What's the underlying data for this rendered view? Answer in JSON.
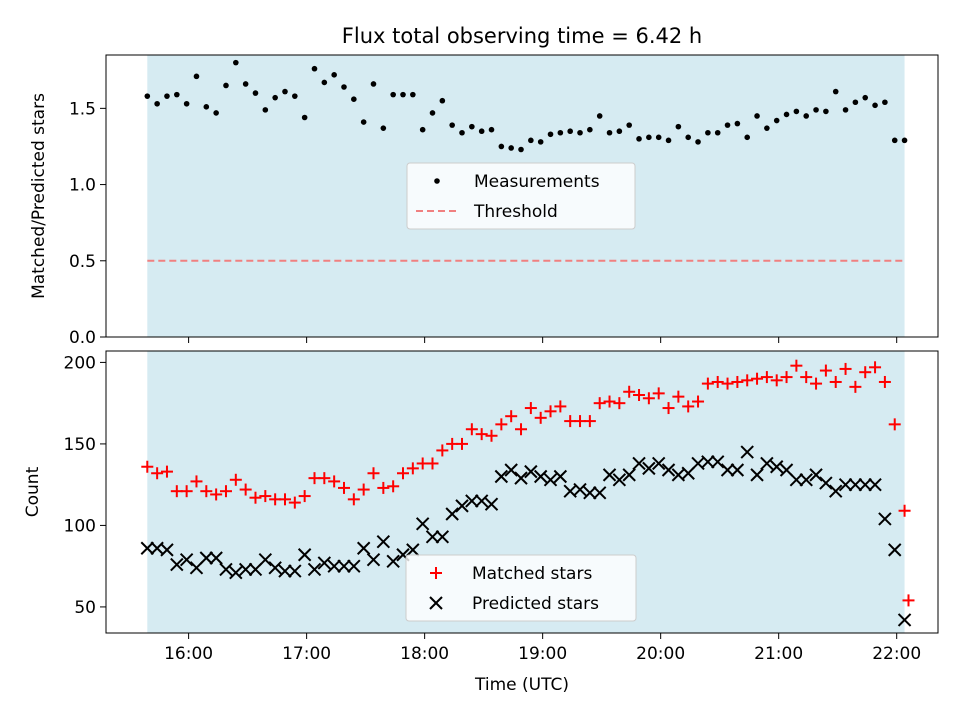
{
  "chart_data": [
    {
      "type": "scatter",
      "title": "Flux total observing time = 6.42 h",
      "xlabel": "",
      "ylabel": "Matched/Predicted stars",
      "ylim": [
        0.0,
        1.85
      ],
      "yticks": [
        "0.0",
        "0.5",
        "1.0",
        "1.5"
      ],
      "xlim": [
        "15:18",
        "22:21"
      ],
      "shaded_span": [
        "15:39",
        "22:04"
      ],
      "legend_position": "center",
      "threshold": 0.5,
      "series": [
        {
          "name": "Measurements",
          "marker": "dot",
          "color": "#000000",
          "x": [
            "15:39",
            "15:44",
            "15:49",
            "15:54",
            "15:59",
            "16:04",
            "16:09",
            "16:14",
            "16:19",
            "16:24",
            "16:29",
            "16:34",
            "16:39",
            "16:44",
            "16:49",
            "16:54",
            "16:59",
            "17:04",
            "17:09",
            "17:14",
            "17:19",
            "17:24",
            "17:29",
            "17:34",
            "17:39",
            "17:44",
            "17:49",
            "17:54",
            "17:59",
            "18:04",
            "18:09",
            "18:14",
            "18:19",
            "18:24",
            "18:29",
            "18:34",
            "18:39",
            "18:44",
            "18:49",
            "18:54",
            "18:59",
            "19:04",
            "19:09",
            "19:14",
            "19:19",
            "19:24",
            "19:29",
            "19:34",
            "19:39",
            "19:44",
            "19:49",
            "19:54",
            "19:59",
            "20:04",
            "20:09",
            "20:14",
            "20:19",
            "20:24",
            "20:29",
            "20:34",
            "20:39",
            "20:44",
            "20:49",
            "20:54",
            "20:59",
            "21:04",
            "21:09",
            "21:14",
            "21:19",
            "21:24",
            "21:29",
            "21:34",
            "21:39",
            "21:44",
            "21:49",
            "21:54",
            "21:59",
            "22:04"
          ],
          "values": [
            1.58,
            1.53,
            1.58,
            1.59,
            1.53,
            1.71,
            1.51,
            1.47,
            1.65,
            1.8,
            1.66,
            1.6,
            1.49,
            1.57,
            1.61,
            1.58,
            1.44,
            1.76,
            1.67,
            1.72,
            1.64,
            1.56,
            1.41,
            1.66,
            1.37,
            1.59,
            1.59,
            1.59,
            1.36,
            1.47,
            1.55,
            1.39,
            1.34,
            1.38,
            1.35,
            1.36,
            1.25,
            1.24,
            1.23,
            1.29,
            1.28,
            1.33,
            1.34,
            1.35,
            1.34,
            1.36,
            1.45,
            1.34,
            1.35,
            1.39,
            1.3,
            1.31,
            1.31,
            1.29,
            1.38,
            1.31,
            1.28,
            1.34,
            1.34,
            1.39,
            1.4,
            1.31,
            1.45,
            1.37,
            1.42,
            1.46,
            1.48,
            1.45,
            1.49,
            1.48,
            1.61,
            1.49,
            1.54,
            1.57,
            1.52,
            1.54,
            1.29,
            1.29
          ]
        },
        {
          "name": "Threshold",
          "marker": "dashed-line",
          "color": "#f08080"
        }
      ]
    },
    {
      "type": "scatter",
      "title": "",
      "xlabel": "Time (UTC)",
      "ylabel": "Count",
      "ylim": [
        34,
        207
      ],
      "yticks": [
        "50",
        "100",
        "150",
        "200"
      ],
      "xlim": [
        "15:18",
        "22:21"
      ],
      "xticks": [
        "16:00",
        "17:00",
        "18:00",
        "19:00",
        "20:00",
        "21:00",
        "22:00"
      ],
      "shaded_span": [
        "15:39",
        "22:04"
      ],
      "legend_position": "lower center",
      "series": [
        {
          "name": "Matched stars",
          "marker": "plus",
          "color": "#ff0000",
          "x": [
            "15:39",
            "15:44",
            "15:49",
            "15:54",
            "15:59",
            "16:04",
            "16:09",
            "16:14",
            "16:19",
            "16:24",
            "16:29",
            "16:34",
            "16:39",
            "16:44",
            "16:49",
            "16:54",
            "16:59",
            "17:04",
            "17:09",
            "17:14",
            "17:19",
            "17:24",
            "17:29",
            "17:34",
            "17:39",
            "17:44",
            "17:49",
            "17:54",
            "17:59",
            "18:04",
            "18:09",
            "18:14",
            "18:19",
            "18:24",
            "18:29",
            "18:34",
            "18:39",
            "18:44",
            "18:49",
            "18:54",
            "18:59",
            "19:04",
            "19:09",
            "19:14",
            "19:19",
            "19:24",
            "19:29",
            "19:34",
            "19:39",
            "19:44",
            "19:49",
            "19:54",
            "19:59",
            "20:04",
            "20:09",
            "20:14",
            "20:19",
            "20:24",
            "20:29",
            "20:34",
            "20:39",
            "20:44",
            "20:49",
            "20:54",
            "20:59",
            "21:04",
            "21:09",
            "21:14",
            "21:19",
            "21:24",
            "21:29",
            "21:34",
            "21:39",
            "21:44",
            "21:49",
            "21:54",
            "21:59",
            "22:04"
          ],
          "values": [
            136,
            132,
            133,
            121,
            121,
            127,
            121,
            119,
            121,
            128,
            122,
            117,
            118,
            116,
            116,
            114,
            118,
            129,
            129,
            127,
            123,
            116,
            122,
            132,
            123,
            124,
            132,
            135,
            138,
            138,
            146,
            150,
            150,
            159,
            156,
            155,
            162,
            167,
            159,
            172,
            166,
            170,
            173,
            164,
            164,
            164,
            175,
            176,
            175,
            182,
            180,
            178,
            181,
            172,
            179,
            173,
            176,
            187,
            188,
            187,
            188,
            189,
            190,
            191,
            189,
            191,
            198,
            191,
            187,
            195,
            188,
            196,
            185,
            194,
            197,
            188,
            162,
            109
          ],
          "extra_points": [
            {
              "x": "22:06",
              "value": 54
            }
          ]
        },
        {
          "name": "Predicted stars",
          "marker": "x",
          "color": "#000000",
          "x": [
            "15:39",
            "15:44",
            "15:49",
            "15:54",
            "15:59",
            "16:04",
            "16:09",
            "16:14",
            "16:19",
            "16:24",
            "16:29",
            "16:34",
            "16:39",
            "16:44",
            "16:49",
            "16:54",
            "16:59",
            "17:04",
            "17:09",
            "17:14",
            "17:19",
            "17:24",
            "17:29",
            "17:34",
            "17:39",
            "17:44",
            "17:49",
            "17:54",
            "17:59",
            "18:04",
            "18:09",
            "18:14",
            "18:19",
            "18:24",
            "18:29",
            "18:34",
            "18:39",
            "18:44",
            "18:49",
            "18:54",
            "18:59",
            "19:04",
            "19:09",
            "19:14",
            "19:19",
            "19:24",
            "19:29",
            "19:34",
            "19:39",
            "19:44",
            "19:49",
            "19:54",
            "19:59",
            "20:04",
            "20:09",
            "20:14",
            "20:19",
            "20:24",
            "20:29",
            "20:34",
            "20:39",
            "20:44",
            "20:49",
            "20:54",
            "20:59",
            "21:04",
            "21:09",
            "21:14",
            "21:19",
            "21:24",
            "21:29",
            "21:34",
            "21:39",
            "21:44",
            "21:49",
            "21:54",
            "21:59",
            "22:04"
          ],
          "values": [
            86,
            86,
            85,
            76,
            79,
            74,
            80,
            80,
            73,
            71,
            73,
            73,
            79,
            74,
            72,
            72,
            82,
            73,
            77,
            75,
            75,
            75,
            86,
            79,
            90,
            78,
            82,
            85,
            101,
            93,
            93,
            107,
            112,
            115,
            115,
            113,
            130,
            134,
            129,
            133,
            130,
            128,
            130,
            121,
            122,
            120,
            120,
            131,
            128,
            131,
            138,
            135,
            138,
            134,
            131,
            132,
            138,
            139,
            139,
            134,
            134,
            145,
            131,
            138,
            136,
            134,
            128,
            128,
            131,
            126,
            121,
            125,
            125,
            125,
            125,
            104,
            85,
            42
          ]
        }
      ]
    }
  ]
}
